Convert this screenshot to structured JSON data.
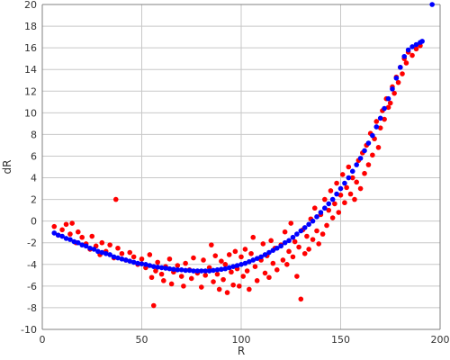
{
  "chart_data": {
    "type": "scatter",
    "title": "",
    "xlabel": "R",
    "ylabel": "dR",
    "xlim": [
      0,
      200
    ],
    "ylim": [
      -10,
      20
    ],
    "x_ticks": [
      0,
      50,
      100,
      150,
      200
    ],
    "y_ticks": [
      20,
      18,
      16,
      14,
      12,
      10,
      8,
      6,
      4,
      2,
      0,
      -2,
      -4,
      -6,
      -8,
      -10
    ],
    "grid": true,
    "legend": "none",
    "colors": {
      "red_points": "#ff0000",
      "blue_points": "#0000ff",
      "grid": "#c8c8c8",
      "axis": "#808080"
    },
    "series": [
      {
        "color": "#ff0000",
        "points": [
          [
            6,
            -0.5
          ],
          [
            8,
            -1.3
          ],
          [
            10,
            -0.8
          ],
          [
            12,
            -0.3
          ],
          [
            14,
            -1.2
          ],
          [
            15,
            -0.2
          ],
          [
            17,
            -2.0
          ],
          [
            18,
            -1.0
          ],
          [
            20,
            -1.5
          ],
          [
            22,
            -2.1
          ],
          [
            24,
            -2.6
          ],
          [
            25,
            -1.4
          ],
          [
            27,
            -2.3
          ],
          [
            29,
            -3.1
          ],
          [
            30,
            -2.0
          ],
          [
            32,
            -2.8
          ],
          [
            34,
            -2.2
          ],
          [
            36,
            -3.4
          ],
          [
            37,
            2.0
          ],
          [
            38,
            -2.5
          ],
          [
            40,
            -3.0
          ],
          [
            42,
            -3.6
          ],
          [
            44,
            -2.9
          ],
          [
            46,
            -3.3
          ],
          [
            48,
            -4.0
          ],
          [
            50,
            -3.5
          ],
          [
            52,
            -4.3
          ],
          [
            54,
            -3.1
          ],
          [
            55,
            -5.2
          ],
          [
            56,
            -7.8
          ],
          [
            57,
            -4.6
          ],
          [
            58,
            -3.8
          ],
          [
            60,
            -4.9
          ],
          [
            61,
            -5.5
          ],
          [
            62,
            -4.2
          ],
          [
            64,
            -3.5
          ],
          [
            65,
            -5.8
          ],
          [
            66,
            -4.7
          ],
          [
            68,
            -4.1
          ],
          [
            70,
            -5.1
          ],
          [
            71,
            -6.0
          ],
          [
            72,
            -3.9
          ],
          [
            74,
            -4.5
          ],
          [
            75,
            -5.3
          ],
          [
            76,
            -3.4
          ],
          [
            78,
            -4.8
          ],
          [
            80,
            -6.1
          ],
          [
            81,
            -3.6
          ],
          [
            82,
            -5.0
          ],
          [
            84,
            -4.3
          ],
          [
            85,
            -2.2
          ],
          [
            86,
            -5.6
          ],
          [
            87,
            -3.2
          ],
          [
            88,
            -4.9
          ],
          [
            89,
            -6.3
          ],
          [
            90,
            -3.7
          ],
          [
            91,
            -5.4
          ],
          [
            92,
            -4.0
          ],
          [
            93,
            -6.6
          ],
          [
            94,
            -3.1
          ],
          [
            95,
            -4.7
          ],
          [
            96,
            -5.9
          ],
          [
            97,
            -2.8
          ],
          [
            98,
            -4.4
          ],
          [
            99,
            -6.0
          ],
          [
            100,
            -3.3
          ],
          [
            101,
            -5.1
          ],
          [
            102,
            -2.6
          ],
          [
            103,
            -4.6
          ],
          [
            104,
            -6.3
          ],
          [
            105,
            -3.0
          ],
          [
            106,
            -1.5
          ],
          [
            107,
            -4.2
          ],
          [
            108,
            -5.5
          ],
          [
            110,
            -3.6
          ],
          [
            111,
            -2.1
          ],
          [
            112,
            -4.8
          ],
          [
            113,
            -3.2
          ],
          [
            114,
            -5.2
          ],
          [
            115,
            -1.8
          ],
          [
            116,
            -3.9
          ],
          [
            117,
            -2.5
          ],
          [
            118,
            -4.5
          ],
          [
            120,
            -2.2
          ],
          [
            121,
            -3.6
          ],
          [
            122,
            -1.0
          ],
          [
            123,
            -4.0
          ],
          [
            124,
            -2.8
          ],
          [
            125,
            -0.2
          ],
          [
            126,
            -3.3
          ],
          [
            127,
            -1.9
          ],
          [
            128,
            -5.1
          ],
          [
            129,
            -2.4
          ],
          [
            130,
            -7.2
          ],
          [
            131,
            -0.8
          ],
          [
            132,
            -3.0
          ],
          [
            133,
            -1.4
          ],
          [
            134,
            -2.6
          ],
          [
            135,
            0.2
          ],
          [
            136,
            -1.7
          ],
          [
            137,
            1.2
          ],
          [
            138,
            -0.9
          ],
          [
            139,
            -2.1
          ],
          [
            140,
            0.6
          ],
          [
            141,
            -1.2
          ],
          [
            142,
            2.0
          ],
          [
            143,
            -0.4
          ],
          [
            144,
            1.0
          ],
          [
            145,
            2.8
          ],
          [
            146,
            0.3
          ],
          [
            147,
            1.6
          ],
          [
            148,
            3.5
          ],
          [
            149,
            0.8
          ],
          [
            150,
            2.4
          ],
          [
            151,
            4.3
          ],
          [
            152,
            1.7
          ],
          [
            153,
            3.1
          ],
          [
            154,
            5.0
          ],
          [
            155,
            2.5
          ],
          [
            156,
            4.0
          ],
          [
            157,
            2.0
          ],
          [
            158,
            3.6
          ],
          [
            159,
            5.6
          ],
          [
            160,
            3.0
          ],
          [
            161,
            6.3
          ],
          [
            162,
            4.4
          ],
          [
            163,
            7.0
          ],
          [
            164,
            5.2
          ],
          [
            165,
            8.1
          ],
          [
            166,
            6.1
          ],
          [
            167,
            7.6
          ],
          [
            168,
            9.2
          ],
          [
            169,
            6.8
          ],
          [
            170,
            8.6
          ],
          [
            171,
            10.2
          ],
          [
            172,
            9.4
          ],
          [
            173,
            11.3
          ],
          [
            174,
            10.5
          ],
          [
            175,
            10.9
          ],
          [
            176,
            12.4
          ],
          [
            177,
            11.8
          ],
          [
            178,
            13.3
          ],
          [
            179,
            12.8
          ],
          [
            180,
            14.2
          ],
          [
            181,
            13.6
          ],
          [
            182,
            15.0
          ],
          [
            183,
            14.6
          ],
          [
            184,
            15.6
          ],
          [
            186,
            15.3
          ],
          [
            188,
            15.9
          ],
          [
            190,
            16.2
          ]
        ]
      },
      {
        "color": "#0000ff",
        "points": [
          [
            6,
            -1.1
          ],
          [
            8,
            -1.3
          ],
          [
            10,
            -1.4
          ],
          [
            12,
            -1.6
          ],
          [
            14,
            -1.7
          ],
          [
            16,
            -1.9
          ],
          [
            18,
            -2.0
          ],
          [
            20,
            -2.2
          ],
          [
            22,
            -2.3
          ],
          [
            24,
            -2.5
          ],
          [
            26,
            -2.6
          ],
          [
            28,
            -2.8
          ],
          [
            30,
            -2.9
          ],
          [
            32,
            -3.0
          ],
          [
            34,
            -3.1
          ],
          [
            36,
            -3.3
          ],
          [
            38,
            -3.4
          ],
          [
            40,
            -3.5
          ],
          [
            42,
            -3.6
          ],
          [
            44,
            -3.7
          ],
          [
            46,
            -3.8
          ],
          [
            48,
            -3.9
          ],
          [
            50,
            -3.95
          ],
          [
            52,
            -4.0
          ],
          [
            54,
            -4.1
          ],
          [
            56,
            -4.2
          ],
          [
            58,
            -4.25
          ],
          [
            60,
            -4.3
          ],
          [
            62,
            -4.35
          ],
          [
            64,
            -4.4
          ],
          [
            66,
            -4.45
          ],
          [
            68,
            -4.5
          ],
          [
            70,
            -4.5
          ],
          [
            72,
            -4.55
          ],
          [
            74,
            -4.55
          ],
          [
            76,
            -4.6
          ],
          [
            78,
            -4.6
          ],
          [
            80,
            -4.6
          ],
          [
            82,
            -4.6
          ],
          [
            84,
            -4.6
          ],
          [
            86,
            -4.55
          ],
          [
            88,
            -4.5
          ],
          [
            90,
            -4.45
          ],
          [
            92,
            -4.4
          ],
          [
            94,
            -4.3
          ],
          [
            96,
            -4.2
          ],
          [
            98,
            -4.1
          ],
          [
            100,
            -4.0
          ],
          [
            102,
            -3.9
          ],
          [
            104,
            -3.75
          ],
          [
            106,
            -3.6
          ],
          [
            108,
            -3.45
          ],
          [
            110,
            -3.3
          ],
          [
            112,
            -3.1
          ],
          [
            114,
            -2.9
          ],
          [
            116,
            -2.7
          ],
          [
            118,
            -2.5
          ],
          [
            120,
            -2.3
          ],
          [
            122,
            -2.0
          ],
          [
            124,
            -1.8
          ],
          [
            126,
            -1.5
          ],
          [
            128,
            -1.2
          ],
          [
            130,
            -0.9
          ],
          [
            132,
            -0.6
          ],
          [
            134,
            -0.3
          ],
          [
            136,
            0.0
          ],
          [
            138,
            0.4
          ],
          [
            140,
            0.8
          ],
          [
            142,
            1.2
          ],
          [
            144,
            1.6
          ],
          [
            146,
            2.0
          ],
          [
            148,
            2.5
          ],
          [
            150,
            3.0
          ],
          [
            152,
            3.5
          ],
          [
            154,
            4.0
          ],
          [
            156,
            4.6
          ],
          [
            158,
            5.2
          ],
          [
            160,
            5.8
          ],
          [
            162,
            6.5
          ],
          [
            164,
            7.2
          ],
          [
            166,
            7.9
          ],
          [
            168,
            8.7
          ],
          [
            170,
            9.5
          ],
          [
            172,
            10.4
          ],
          [
            174,
            11.3
          ],
          [
            176,
            12.2
          ],
          [
            178,
            13.2
          ],
          [
            180,
            14.2
          ],
          [
            182,
            15.2
          ],
          [
            184,
            15.8
          ],
          [
            186,
            16.1
          ],
          [
            188,
            16.3
          ],
          [
            190,
            16.5
          ],
          [
            191,
            16.6
          ],
          [
            196,
            20
          ]
        ]
      }
    ]
  }
}
